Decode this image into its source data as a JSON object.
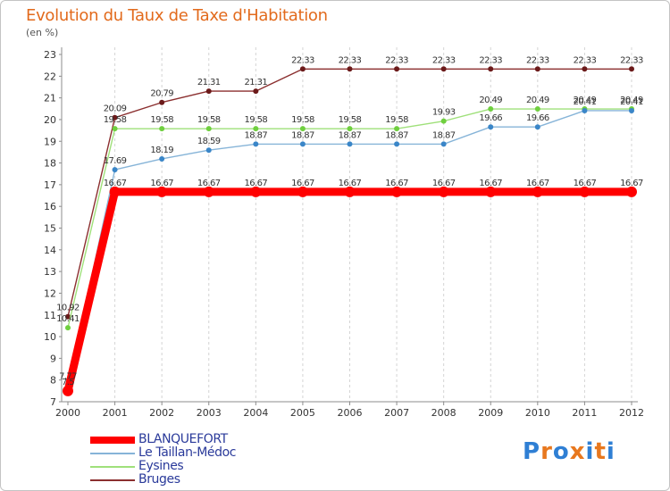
{
  "chart_data": {
    "type": "line",
    "title": "Evolution du Taux de Taxe d'Habitation",
    "subtitle": "(en %)",
    "x": [
      "2000",
      "2001",
      "2002",
      "2003",
      "2004",
      "2005",
      "2006",
      "2007",
      "2008",
      "2009",
      "2010",
      "2011",
      "2012"
    ],
    "ylim": [
      7,
      23
    ],
    "yticks": [
      7,
      8,
      9,
      10,
      11,
      12,
      13,
      14,
      15,
      16,
      17,
      18,
      19,
      20,
      21,
      22,
      23
    ],
    "grid": "vertical",
    "legend": "bottom-left",
    "series": [
      {
        "name": "Bruges",
        "color": "#8b2f2f",
        "marker": "#6b1a1a",
        "values": [
          10.92,
          20.09,
          20.79,
          21.31,
          21.31,
          22.33,
          22.33,
          22.33,
          22.33,
          22.33,
          22.33,
          22.33,
          22.33
        ],
        "labels": [
          "10.92",
          "20.09",
          "20.79",
          "21.31",
          "21.31",
          "22.33",
          "22.33",
          "22.33",
          "22.33",
          "22.33",
          "22.33",
          "22.33",
          "22.33"
        ]
      },
      {
        "name": "Eysines",
        "color": "#9fe07a",
        "marker": "#6fcf3f",
        "values": [
          10.41,
          19.58,
          19.58,
          19.58,
          19.58,
          19.58,
          19.58,
          19.58,
          19.93,
          20.49,
          20.49,
          20.49,
          20.49
        ],
        "labels": [
          "10.41",
          "19.58",
          "19.58",
          "19.58",
          "19.58",
          "19.58",
          "19.58",
          "19.58",
          "19.93",
          "20.49",
          "20.49",
          "20.49",
          "20.49"
        ]
      },
      {
        "name": "Le Taillan-Médoc",
        "color": "#86b4d8",
        "marker": "#3a86c8",
        "values": [
          7.77,
          17.69,
          18.19,
          18.59,
          18.87,
          18.87,
          18.87,
          18.87,
          18.87,
          19.66,
          19.66,
          20.41,
          20.41
        ],
        "labels": [
          "7.77",
          "17.69",
          "18.19",
          "18.59",
          "18.87",
          "18.87",
          "18.87",
          "18.87",
          "18.87",
          "19.66",
          "19.66",
          "20.41",
          "20.41"
        ]
      },
      {
        "name": "BLANQUEFORT",
        "color": "#ff0000",
        "marker": "#ff0000",
        "values": [
          7.5,
          16.67,
          16.67,
          16.67,
          16.67,
          16.67,
          16.67,
          16.67,
          16.67,
          16.67,
          16.67,
          16.67,
          16.67
        ],
        "labels": [
          "7.5",
          "16.67",
          "16.67",
          "16.67",
          "16.67",
          "16.67",
          "16.67",
          "16.67",
          "16.67",
          "16.67",
          "16.67",
          "16.67",
          "16.67"
        ]
      }
    ]
  },
  "legend": [
    {
      "label": "BLANQUEFORT",
      "color": "#ff0000"
    },
    {
      "label": "Le Taillan-Médoc",
      "color": "#86b4d8"
    },
    {
      "label": "Eysines",
      "color": "#9fe07a"
    },
    {
      "label": "Bruges",
      "color": "#8b2f2f"
    }
  ],
  "logo": {
    "text": "Proxiti",
    "letter_colors": [
      "#2f7fd4",
      "#e8781e",
      "#2f7fd4",
      "#e8781e",
      "#2f7fd4",
      "#e8781e",
      "#2f7fd4"
    ]
  }
}
